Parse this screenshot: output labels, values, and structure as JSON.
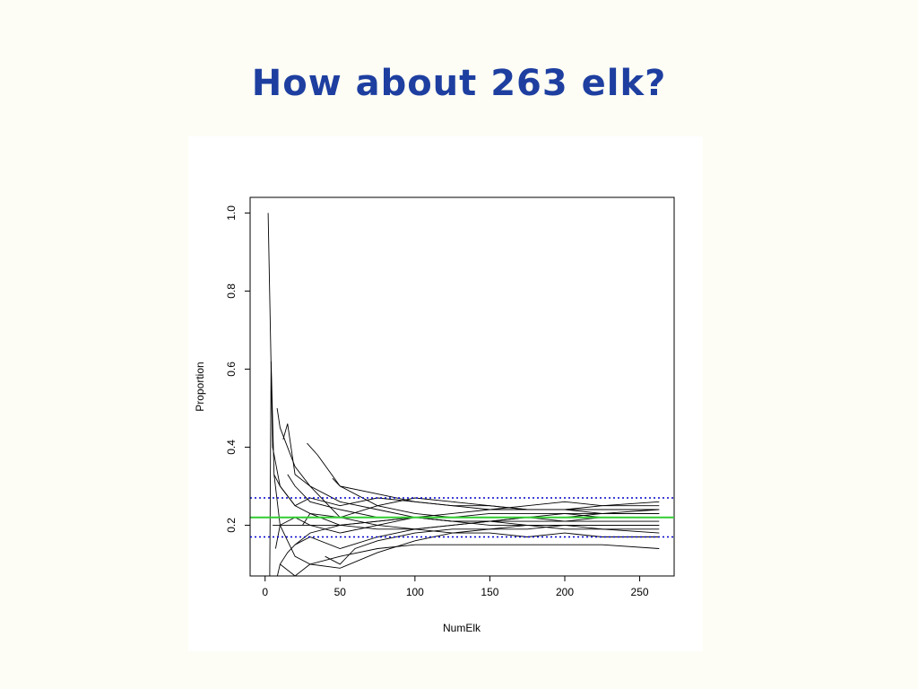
{
  "slide": {
    "title": "How about 263 elk?"
  },
  "colors": {
    "background": "#fdfdf5",
    "title": "#1e3fa0",
    "true_proportion_line": "#33cc33",
    "bound_lines": "#0000cc",
    "simulation_lines": "#000000"
  },
  "chart_data": {
    "type": "line",
    "title": "",
    "xlabel": "NumElk",
    "ylabel": "Proportion",
    "xlim": [
      -10,
      273
    ],
    "ylim": [
      0.07,
      1.04
    ],
    "xticks": [
      0,
      50,
      100,
      150,
      200,
      250
    ],
    "yticks": [
      0.2,
      0.4,
      0.6,
      0.8,
      1.0
    ],
    "xtick_labels": [
      "0",
      "50",
      "100",
      "150",
      "200",
      "250"
    ],
    "ytick_labels": [
      "0.2",
      "0.4",
      "0.6",
      "0.8",
      "1.0"
    ],
    "grid": false,
    "legend": "none",
    "reference_lines": [
      {
        "style": "solid",
        "color": "#33cc33",
        "y": 0.22
      },
      {
        "style": "dotted",
        "color": "#0000cc",
        "y": 0.27
      },
      {
        "style": "dotted",
        "color": "#0000cc",
        "y": 0.17
      }
    ],
    "series": [
      {
        "x": [
          2,
          5,
          10,
          20,
          30,
          50,
          75,
          100,
          125,
          150,
          175,
          200,
          225,
          263
        ],
        "y": [
          1.0,
          0.4,
          0.3,
          0.25,
          0.23,
          0.22,
          0.25,
          0.27,
          0.26,
          0.25,
          0.24,
          0.24,
          0.23,
          0.24
        ]
      },
      {
        "x": [
          3,
          4,
          6,
          10,
          20,
          30,
          50,
          75,
          100,
          125,
          150,
          175,
          200,
          225,
          263
        ],
        "y": [
          0.0,
          0.62,
          0.33,
          0.2,
          0.2,
          0.2,
          0.18,
          0.2,
          0.22,
          0.21,
          0.21,
          0.22,
          0.23,
          0.22,
          0.22
        ]
      },
      {
        "x": [
          8,
          10,
          20,
          30,
          50,
          75,
          100,
          125,
          150,
          175,
          200,
          225,
          263
        ],
        "y": [
          0.5,
          0.45,
          0.35,
          0.3,
          0.26,
          0.24,
          0.22,
          0.21,
          0.21,
          0.2,
          0.2,
          0.2,
          0.2
        ]
      },
      {
        "x": [
          4,
          10,
          15,
          20,
          30,
          50,
          75,
          100,
          125,
          150,
          175,
          200,
          225,
          263
        ],
        "y": [
          0.0,
          0.1,
          0.13,
          0.15,
          0.18,
          0.2,
          0.21,
          0.22,
          0.22,
          0.22,
          0.22,
          0.21,
          0.21,
          0.21
        ]
      },
      {
        "x": [
          5,
          10,
          20,
          30,
          50,
          75,
          100,
          125,
          150,
          175,
          200,
          225,
          263
        ],
        "y": [
          0.2,
          0.2,
          0.12,
          0.1,
          0.12,
          0.14,
          0.15,
          0.15,
          0.15,
          0.15,
          0.15,
          0.15,
          0.14
        ]
      },
      {
        "x": [
          12,
          15,
          20,
          30,
          50,
          75,
          100,
          125,
          150,
          175,
          200,
          225,
          263
        ],
        "y": [
          0.42,
          0.46,
          0.33,
          0.3,
          0.22,
          0.2,
          0.19,
          0.18,
          0.18,
          0.17,
          0.18,
          0.17,
          0.17
        ]
      },
      {
        "x": [
          28,
          35,
          50,
          75,
          100,
          125,
          150,
          175,
          200,
          225,
          263
        ],
        "y": [
          0.41,
          0.38,
          0.3,
          0.25,
          0.23,
          0.22,
          0.23,
          0.23,
          0.23,
          0.23,
          0.23
        ]
      },
      {
        "x": [
          10,
          20,
          30,
          50,
          75,
          100,
          125,
          150,
          175,
          200,
          225,
          263
        ],
        "y": [
          0.1,
          0.07,
          0.1,
          0.09,
          0.13,
          0.16,
          0.18,
          0.19,
          0.19,
          0.2,
          0.2,
          0.2
        ]
      },
      {
        "x": [
          6,
          10,
          20,
          30,
          50,
          75,
          100,
          125,
          150,
          175,
          200,
          225,
          263
        ],
        "y": [
          0.33,
          0.3,
          0.25,
          0.27,
          0.25,
          0.27,
          0.26,
          0.25,
          0.24,
          0.25,
          0.26,
          0.25,
          0.25
        ]
      },
      {
        "x": [
          20,
          30,
          50,
          75,
          100,
          125,
          150,
          175,
          200,
          225,
          263
        ],
        "y": [
          0.15,
          0.17,
          0.14,
          0.17,
          0.19,
          0.2,
          0.21,
          0.22,
          0.22,
          0.23,
          0.23
        ]
      },
      {
        "x": [
          15,
          20,
          30,
          50,
          75,
          100,
          125,
          150,
          175,
          200,
          225,
          263
        ],
        "y": [
          0.33,
          0.3,
          0.26,
          0.24,
          0.22,
          0.22,
          0.23,
          0.24,
          0.24,
          0.24,
          0.24,
          0.24
        ]
      },
      {
        "x": [
          25,
          30,
          50,
          75,
          100,
          125,
          150,
          175,
          200,
          225,
          263
        ],
        "y": [
          0.2,
          0.23,
          0.2,
          0.19,
          0.19,
          0.2,
          0.21,
          0.21,
          0.21,
          0.22,
          0.22
        ]
      },
      {
        "x": [
          40,
          50,
          60,
          75,
          100,
          125,
          150,
          175,
          200,
          225,
          263
        ],
        "y": [
          0.12,
          0.1,
          0.14,
          0.16,
          0.18,
          0.19,
          0.19,
          0.2,
          0.2,
          0.19,
          0.19
        ]
      },
      {
        "x": [
          7,
          10,
          20,
          30,
          50,
          75,
          100,
          125,
          150,
          175,
          200,
          225,
          263
        ],
        "y": [
          0.14,
          0.2,
          0.22,
          0.2,
          0.2,
          0.21,
          0.22,
          0.21,
          0.2,
          0.2,
          0.19,
          0.19,
          0.18
        ]
      },
      {
        "x": [
          45,
          50,
          75,
          100,
          125,
          150,
          175,
          200,
          225,
          263
        ],
        "y": [
          0.32,
          0.3,
          0.28,
          0.26,
          0.25,
          0.25,
          0.24,
          0.24,
          0.25,
          0.26
        ]
      }
    ]
  }
}
